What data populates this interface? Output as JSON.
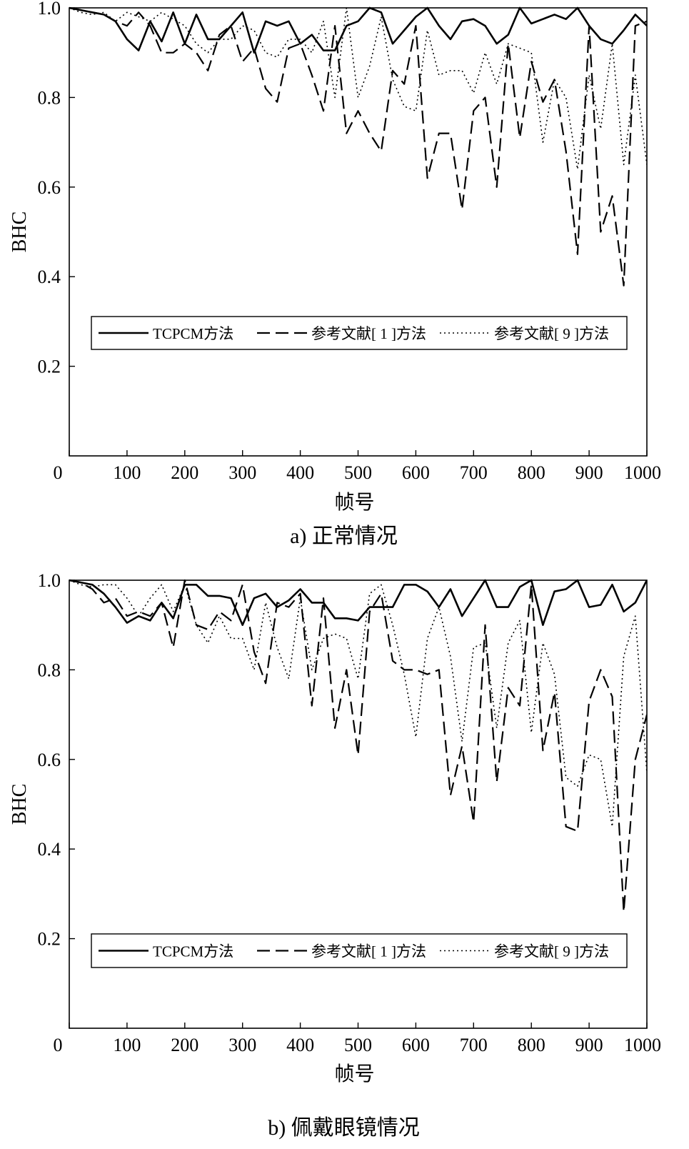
{
  "chart_data": [
    {
      "type": "line",
      "caption": "a) 正常情况",
      "xlabel": "帧号",
      "ylabel": "BHC",
      "xlim": [
        0,
        1000
      ],
      "ylim": [
        0,
        1.0
      ],
      "xticks": [
        "0",
        "100",
        "200",
        "300",
        "400",
        "500",
        "600",
        "700",
        "800",
        "900",
        "1000"
      ],
      "yticks": [
        "0.2",
        "0.4",
        "0.6",
        "0.8",
        "1.0"
      ],
      "legend_position": "lower-center",
      "series": [
        {
          "name": "TCPCM方法",
          "style": "solid",
          "x": [
            0,
            20,
            40,
            60,
            80,
            100,
            120,
            140,
            160,
            180,
            200,
            220,
            240,
            260,
            280,
            300,
            320,
            340,
            360,
            380,
            400,
            420,
            440,
            460,
            480,
            500,
            520,
            540,
            560,
            580,
            600,
            620,
            640,
            660,
            680,
            700,
            720,
            740,
            760,
            780,
            800,
            820,
            840,
            860,
            880,
            900,
            920,
            940,
            960,
            980,
            1000
          ],
          "y": [
            1.0,
            0.995,
            0.99,
            0.985,
            0.97,
            0.93,
            0.905,
            0.97,
            0.925,
            0.99,
            0.92,
            0.985,
            0.93,
            0.93,
            0.96,
            0.99,
            0.9,
            0.97,
            0.96,
            0.97,
            0.92,
            0.94,
            0.905,
            0.905,
            0.96,
            0.97,
            1.0,
            0.99,
            0.92,
            0.95,
            0.98,
            1.0,
            0.96,
            0.93,
            0.97,
            0.975,
            0.96,
            0.92,
            0.94,
            1.0,
            0.965,
            0.975,
            0.985,
            0.975,
            1.0,
            0.96,
            0.93,
            0.92,
            0.95,
            0.985,
            0.96
          ]
        },
        {
          "name": "参考文献[ 1 ]方法",
          "style": "dashed",
          "x": [
            0,
            20,
            40,
            60,
            80,
            100,
            120,
            140,
            160,
            180,
            200,
            220,
            240,
            260,
            280,
            300,
            320,
            340,
            360,
            380,
            400,
            420,
            440,
            460,
            480,
            500,
            520,
            540,
            560,
            580,
            600,
            620,
            640,
            660,
            680,
            700,
            720,
            740,
            760,
            780,
            800,
            820,
            840,
            860,
            880,
            900,
            920,
            940,
            960,
            980,
            1000
          ],
          "y": [
            1.0,
            0.995,
            0.99,
            0.985,
            0.97,
            0.96,
            0.99,
            0.96,
            0.9,
            0.9,
            0.92,
            0.9,
            0.86,
            0.94,
            0.96,
            0.88,
            0.91,
            0.82,
            0.79,
            0.91,
            0.92,
            0.85,
            0.77,
            0.96,
            0.72,
            0.77,
            0.72,
            0.68,
            0.86,
            0.83,
            0.96,
            0.62,
            0.72,
            0.72,
            0.55,
            0.77,
            0.8,
            0.6,
            0.92,
            0.71,
            0.88,
            0.79,
            0.84,
            0.68,
            0.45,
            0.96,
            0.5,
            0.58,
            0.38,
            0.96,
            0.97
          ]
        },
        {
          "name": "参考文献[ 9 ]方法",
          "style": "dotted",
          "x": [
            0,
            20,
            40,
            60,
            80,
            100,
            120,
            140,
            160,
            180,
            200,
            220,
            240,
            260,
            280,
            300,
            320,
            340,
            360,
            380,
            400,
            420,
            440,
            460,
            480,
            500,
            520,
            540,
            560,
            580,
            600,
            620,
            640,
            660,
            680,
            700,
            720,
            740,
            760,
            780,
            800,
            820,
            840,
            860,
            880,
            900,
            920,
            940,
            960,
            980,
            1000
          ],
          "y": [
            1.0,
            0.99,
            0.985,
            0.99,
            0.97,
            0.99,
            0.98,
            0.97,
            0.99,
            0.975,
            0.96,
            0.92,
            0.9,
            0.93,
            0.93,
            0.96,
            0.95,
            0.9,
            0.89,
            0.93,
            0.93,
            0.9,
            0.97,
            0.8,
            1.0,
            0.8,
            0.87,
            0.98,
            0.84,
            0.78,
            0.77,
            0.95,
            0.85,
            0.86,
            0.86,
            0.81,
            0.9,
            0.83,
            0.92,
            0.91,
            0.9,
            0.7,
            0.84,
            0.8,
            0.64,
            0.85,
            0.73,
            0.92,
            0.65,
            0.85,
            0.65
          ]
        }
      ]
    },
    {
      "type": "line",
      "caption": "b) 佩戴眼镜情况",
      "xlabel": "帧号",
      "ylabel": "BHC",
      "xlim": [
        0,
        1000
      ],
      "ylim": [
        0,
        1.0
      ],
      "xticks": [
        "0",
        "100",
        "200",
        "300",
        "400",
        "500",
        "600",
        "700",
        "800",
        "900",
        "1000"
      ],
      "yticks": [
        "0.2",
        "0.4",
        "0.6",
        "0.8",
        "1.0"
      ],
      "legend_position": "lower-center",
      "series": [
        {
          "name": "TCPCM方法",
          "style": "solid",
          "x": [
            0,
            20,
            40,
            60,
            80,
            100,
            120,
            140,
            160,
            180,
            200,
            220,
            240,
            260,
            280,
            300,
            320,
            340,
            360,
            380,
            400,
            420,
            440,
            460,
            480,
            500,
            520,
            540,
            560,
            580,
            600,
            620,
            640,
            660,
            680,
            700,
            720,
            740,
            760,
            780,
            800,
            820,
            840,
            860,
            880,
            900,
            920,
            940,
            960,
            980,
            1000
          ],
          "y": [
            1.0,
            0.995,
            0.99,
            0.97,
            0.94,
            0.905,
            0.92,
            0.91,
            0.95,
            0.915,
            0.99,
            0.99,
            0.965,
            0.965,
            0.96,
            0.9,
            0.96,
            0.97,
            0.94,
            0.955,
            0.98,
            0.95,
            0.95,
            0.915,
            0.915,
            0.91,
            0.94,
            0.94,
            0.94,
            0.99,
            0.99,
            0.975,
            0.94,
            0.98,
            0.92,
            0.96,
            1.0,
            0.94,
            0.94,
            0.985,
            1.0,
            0.9,
            0.975,
            0.98,
            1.0,
            0.94,
            0.945,
            0.99,
            0.93,
            0.95,
            1.0
          ]
        },
        {
          "name": "参考文献[ 1 ]方法",
          "style": "dashed",
          "x": [
            0,
            20,
            40,
            60,
            80,
            100,
            120,
            140,
            160,
            180,
            200,
            220,
            240,
            260,
            280,
            300,
            320,
            340,
            360,
            380,
            400,
            420,
            440,
            460,
            480,
            500,
            520,
            540,
            560,
            580,
            600,
            620,
            640,
            660,
            680,
            700,
            720,
            740,
            760,
            780,
            800,
            820,
            840,
            860,
            880,
            900,
            920,
            940,
            960,
            980,
            1000
          ],
          "y": [
            1.0,
            0.995,
            0.98,
            0.95,
            0.96,
            0.92,
            0.93,
            0.92,
            0.95,
            0.85,
            1.0,
            0.9,
            0.89,
            0.93,
            0.91,
            0.99,
            0.84,
            0.77,
            0.95,
            0.94,
            0.97,
            0.72,
            0.96,
            0.67,
            0.8,
            0.61,
            0.93,
            0.97,
            0.82,
            0.8,
            0.8,
            0.79,
            0.8,
            0.52,
            0.63,
            0.46,
            0.9,
            0.55,
            0.76,
            0.72,
            0.99,
            0.62,
            0.75,
            0.45,
            0.44,
            0.73,
            0.8,
            0.74,
            0.26,
            0.6,
            0.7
          ]
        },
        {
          "name": "参考文献[ 9 ]方法",
          "style": "dotted",
          "x": [
            0,
            20,
            40,
            60,
            80,
            100,
            120,
            140,
            160,
            180,
            200,
            220,
            240,
            260,
            280,
            300,
            320,
            340,
            360,
            380,
            400,
            420,
            440,
            460,
            480,
            500,
            520,
            540,
            560,
            580,
            600,
            620,
            640,
            660,
            680,
            700,
            720,
            740,
            760,
            780,
            800,
            820,
            840,
            860,
            880,
            900,
            920,
            940,
            960,
            980,
            1000
          ],
          "y": [
            1.0,
            0.99,
            0.985,
            0.99,
            0.99,
            0.96,
            0.92,
            0.96,
            0.99,
            0.93,
            0.99,
            0.9,
            0.86,
            0.92,
            0.87,
            0.87,
            0.8,
            0.95,
            0.85,
            0.78,
            0.96,
            0.8,
            0.87,
            0.88,
            0.87,
            0.78,
            0.97,
            0.99,
            0.9,
            0.79,
            0.65,
            0.87,
            0.94,
            0.83,
            0.64,
            0.85,
            0.86,
            0.67,
            0.86,
            0.91,
            0.66,
            0.86,
            0.79,
            0.56,
            0.54,
            0.61,
            0.6,
            0.45,
            0.83,
            0.92,
            0.57
          ]
        }
      ]
    }
  ]
}
